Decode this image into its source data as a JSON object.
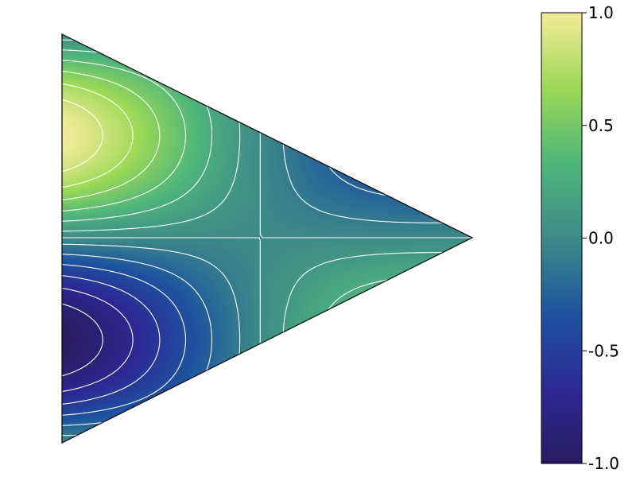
{
  "chart_data": {
    "type": "heatmap",
    "subtype": "filled-contour-on-triangle",
    "colormap": "yellow-green-blue (YlGnBu-like)",
    "colormap_stops": [
      "#2a1b61",
      "#2c2996",
      "#1e54a0",
      "#3d8b88",
      "#4fb67a",
      "#9cd956",
      "#f5eb9a"
    ],
    "contour_line_color": "#ffffff",
    "field": {
      "max_value": 1.0,
      "min_value": -1.0,
      "max_location": "upper-left of triangle",
      "min_location": "lower-left of triangle",
      "saddle_location": "center-right of triangle (value ~0)"
    },
    "colorbar": {
      "range": [
        -1.0,
        1.0
      ],
      "ticks": [
        1.0,
        0.5,
        0.0,
        -0.5,
        -1.0
      ],
      "tick_labels": [
        "1.0",
        "0.5",
        "0.0",
        "-0.5",
        "-1.0"
      ],
      "placement": "right"
    },
    "title": "",
    "xlabel": "",
    "ylabel": "",
    "grid": false,
    "axes_visible": false
  }
}
